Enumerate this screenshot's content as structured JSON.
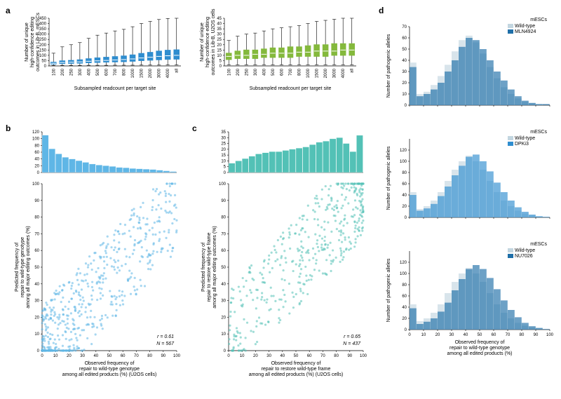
{
  "labels": {
    "a": "a",
    "b": "b",
    "c": "c",
    "d": "d"
  },
  "panel_a": {
    "left": {
      "type": "boxplot",
      "ylabel": "Number of unique\nhigh-confidence editing\noutcomes in Lib-B, mESCs",
      "xlabel": "Subsampled readcount per target site",
      "ylim": [
        0,
        450
      ],
      "yticks": [
        0,
        50,
        100,
        150,
        200,
        250,
        300,
        350,
        400,
        450
      ],
      "categories": [
        "100",
        "200",
        "250",
        "300",
        "400",
        "500",
        "600",
        "700",
        "800",
        "1000",
        "1500",
        "2000",
        "3000",
        "4000",
        "all"
      ],
      "box_color": "#2f8dcf",
      "whisker_color": "#000000",
      "median_color": "#ffffff",
      "boxes": [
        {
          "q1": 18,
          "median": 25,
          "q3": 35,
          "lo": 5,
          "hi": 120
        },
        {
          "q1": 22,
          "median": 32,
          "q3": 48,
          "lo": 5,
          "hi": 180
        },
        {
          "q1": 24,
          "median": 35,
          "q3": 52,
          "lo": 5,
          "hi": 200
        },
        {
          "q1": 26,
          "median": 38,
          "q3": 58,
          "lo": 5,
          "hi": 220
        },
        {
          "q1": 30,
          "median": 44,
          "q3": 68,
          "lo": 6,
          "hi": 260
        },
        {
          "q1": 33,
          "median": 48,
          "q3": 76,
          "lo": 6,
          "hi": 290
        },
        {
          "q1": 36,
          "median": 52,
          "q3": 82,
          "lo": 6,
          "hi": 310
        },
        {
          "q1": 38,
          "median": 56,
          "q3": 88,
          "lo": 7,
          "hi": 330
        },
        {
          "q1": 40,
          "median": 60,
          "q3": 94,
          "lo": 7,
          "hi": 345
        },
        {
          "q1": 44,
          "median": 66,
          "q3": 104,
          "lo": 7,
          "hi": 370
        },
        {
          "q1": 50,
          "median": 75,
          "q3": 118,
          "lo": 8,
          "hi": 400
        },
        {
          "q1": 54,
          "median": 82,
          "q3": 128,
          "lo": 8,
          "hi": 420
        },
        {
          "q1": 58,
          "median": 90,
          "q3": 140,
          "lo": 8,
          "hi": 438
        },
        {
          "q1": 62,
          "median": 96,
          "q3": 148,
          "lo": 9,
          "hi": 448
        },
        {
          "q1": 64,
          "median": 100,
          "q3": 152,
          "lo": 9,
          "hi": 450
        }
      ]
    },
    "right": {
      "type": "boxplot",
      "ylabel": "Number of unique\nhigh-confidence editing\noutcomes in Lib-B, U2OS cells",
      "xlabel": "Subsampled readcount per target site",
      "ylim": [
        0,
        45
      ],
      "yticks": [
        0,
        5,
        10,
        15,
        20,
        25,
        30,
        35,
        40,
        45
      ],
      "categories": [
        "100",
        "200",
        "250",
        "300",
        "400",
        "500",
        "600",
        "700",
        "800",
        "1000",
        "1500",
        "2000",
        "3000",
        "4000",
        "all"
      ],
      "box_color": "#84b93c",
      "whisker_color": "#000000",
      "median_color": "#ffffff",
      "boxes": [
        {
          "q1": 6,
          "median": 9,
          "q3": 12,
          "lo": 1,
          "hi": 24
        },
        {
          "q1": 7,
          "median": 10,
          "q3": 14,
          "lo": 1,
          "hi": 28
        },
        {
          "q1": 7,
          "median": 10,
          "q3": 15,
          "lo": 1,
          "hi": 30
        },
        {
          "q1": 7,
          "median": 11,
          "q3": 15,
          "lo": 1,
          "hi": 31
        },
        {
          "q1": 8,
          "median": 11,
          "q3": 16,
          "lo": 1,
          "hi": 33
        },
        {
          "q1": 8,
          "median": 12,
          "q3": 17,
          "lo": 1,
          "hi": 35
        },
        {
          "q1": 8,
          "median": 12,
          "q3": 17,
          "lo": 1,
          "hi": 36
        },
        {
          "q1": 8,
          "median": 12,
          "q3": 18,
          "lo": 1,
          "hi": 37
        },
        {
          "q1": 9,
          "median": 13,
          "q3": 18,
          "lo": 1,
          "hi": 38
        },
        {
          "q1": 9,
          "median": 13,
          "q3": 19,
          "lo": 1,
          "hi": 40
        },
        {
          "q1": 9,
          "median": 14,
          "q3": 20,
          "lo": 1,
          "hi": 42
        },
        {
          "q1": 9,
          "median": 14,
          "q3": 20,
          "lo": 1,
          "hi": 43
        },
        {
          "q1": 10,
          "median": 14,
          "q3": 21,
          "lo": 1,
          "hi": 44
        },
        {
          "q1": 10,
          "median": 15,
          "q3": 21,
          "lo": 1,
          "hi": 45
        },
        {
          "q1": 10,
          "median": 15,
          "q3": 21,
          "lo": 1,
          "hi": 45
        }
      ]
    }
  },
  "panel_b": {
    "type": "scatter_with_marginal",
    "color": "#5fb6e6",
    "xlabel": "Observed frequency of\nrepair to wild-type genotype\namong all edited products (%) (U2OS cells)",
    "ylabel": "Predicted frequency of\nrepair to wild-type genotype\namong all major editing outcomes (%)",
    "xlim": [
      0,
      100
    ],
    "ylim": [
      0,
      100
    ],
    "ticks": [
      0,
      10,
      20,
      30,
      40,
      50,
      60,
      70,
      80,
      90,
      100
    ],
    "stats": {
      "r": "r = 0.61",
      "n": "N = 567"
    },
    "marginal": {
      "ylim": [
        0,
        120
      ],
      "yticks": [
        0,
        20,
        40,
        60,
        80,
        100,
        120
      ],
      "bins": [
        0,
        5,
        10,
        15,
        20,
        25,
        30,
        35,
        40,
        45,
        50,
        55,
        60,
        65,
        70,
        75,
        80,
        85,
        90,
        95
      ],
      "counts": [
        110,
        70,
        55,
        45,
        40,
        35,
        30,
        25,
        22,
        20,
        18,
        15,
        14,
        12,
        11,
        10,
        9,
        7,
        5,
        3
      ]
    },
    "seed": 1
  },
  "panel_c": {
    "type": "scatter_with_marginal",
    "color": "#53c1b6",
    "xlabel": "Observed frequency of\nrepair to restore wild-type frame\namong all edited products (%) (U2OS cells)",
    "ylabel": "Predicted frequency of\nrepair to restore wild-type frame\namong all major editing outcomes (%)",
    "xlim": [
      0,
      100
    ],
    "ylim": [
      0,
      100
    ],
    "ticks": [
      0,
      10,
      20,
      30,
      40,
      50,
      60,
      70,
      80,
      90,
      100
    ],
    "stats": {
      "r": "r = 0.65",
      "n": "N = 437"
    },
    "marginal": {
      "ylim": [
        0,
        35
      ],
      "yticks": [
        0,
        5,
        10,
        15,
        20,
        25,
        30,
        35
      ],
      "bins": [
        0,
        5,
        10,
        15,
        20,
        25,
        30,
        35,
        40,
        45,
        50,
        55,
        60,
        65,
        70,
        75,
        80,
        85,
        90,
        95
      ],
      "counts": [
        8,
        10,
        12,
        14,
        16,
        17,
        18,
        18,
        19,
        20,
        21,
        22,
        24,
        26,
        27,
        29,
        30,
        25,
        18,
        32
      ]
    },
    "seed": 2
  },
  "panel_d": {
    "type": "histogram_pair",
    "xlabel": "Observed frequency of\nrepair to wild-type genotype\namong all edited products (%)",
    "ylabel": "Number of pathogenic alleles",
    "xlim": [
      0,
      100
    ],
    "xticks": [
      0,
      10,
      20,
      30,
      40,
      50,
      60,
      70,
      80,
      90,
      100
    ],
    "title": "mESCs",
    "wt_color": "#c3d6e0",
    "wt_label": "Wild-type",
    "rows": [
      {
        "treat_label": "MLN4924",
        "treat_color": "#1f6fa8",
        "ylim": [
          0,
          70
        ],
        "yticks": [
          0,
          10,
          20,
          30,
          40,
          50,
          60,
          70
        ],
        "wt": [
          38,
          10,
          12,
          18,
          26,
          36,
          48,
          58,
          62,
          56,
          46,
          34,
          24,
          16,
          10,
          6,
          3,
          2,
          1,
          0
        ],
        "treat": [
          34,
          8,
          10,
          14,
          20,
          30,
          40,
          52,
          60,
          58,
          50,
          40,
          30,
          22,
          14,
          8,
          4,
          2,
          1,
          1
        ]
      },
      {
        "treat_label": "DPKi3",
        "treat_color": "#2f8dcf",
        "ylim": [
          0,
          140
        ],
        "yticks": [
          0,
          20,
          40,
          60,
          80,
          100,
          120
        ],
        "wt": [
          45,
          15,
          20,
          30,
          45,
          65,
          85,
          100,
          110,
          100,
          85,
          65,
          45,
          30,
          20,
          12,
          7,
          4,
          2,
          1
        ],
        "treat": [
          40,
          12,
          16,
          24,
          38,
          55,
          75,
          92,
          108,
          112,
          100,
          82,
          62,
          45,
          30,
          18,
          10,
          5,
          2,
          1
        ]
      },
      {
        "treat_label": "NU7026",
        "treat_color": "#1f6fa8",
        "ylim": [
          0,
          140
        ],
        "yticks": [
          0,
          20,
          40,
          60,
          80,
          100,
          120
        ],
        "wt": [
          45,
          15,
          20,
          30,
          45,
          65,
          85,
          100,
          110,
          100,
          85,
          65,
          45,
          30,
          20,
          12,
          7,
          4,
          2,
          1
        ],
        "treat": [
          38,
          10,
          14,
          20,
          32,
          48,
          70,
          90,
          108,
          115,
          108,
          92,
          72,
          52,
          35,
          22,
          12,
          6,
          3,
          1
        ]
      }
    ]
  },
  "style": {
    "font_family": "Arial, Helvetica, sans-serif",
    "axis_color": "#000000",
    "background": "#ffffff",
    "label_fontsize": 7,
    "tick_fontsize": 6,
    "panel_label_fontsize": 12,
    "marker_radius": 1.6,
    "marker_opacity": 0.55,
    "hist_opacity": 0.65
  }
}
